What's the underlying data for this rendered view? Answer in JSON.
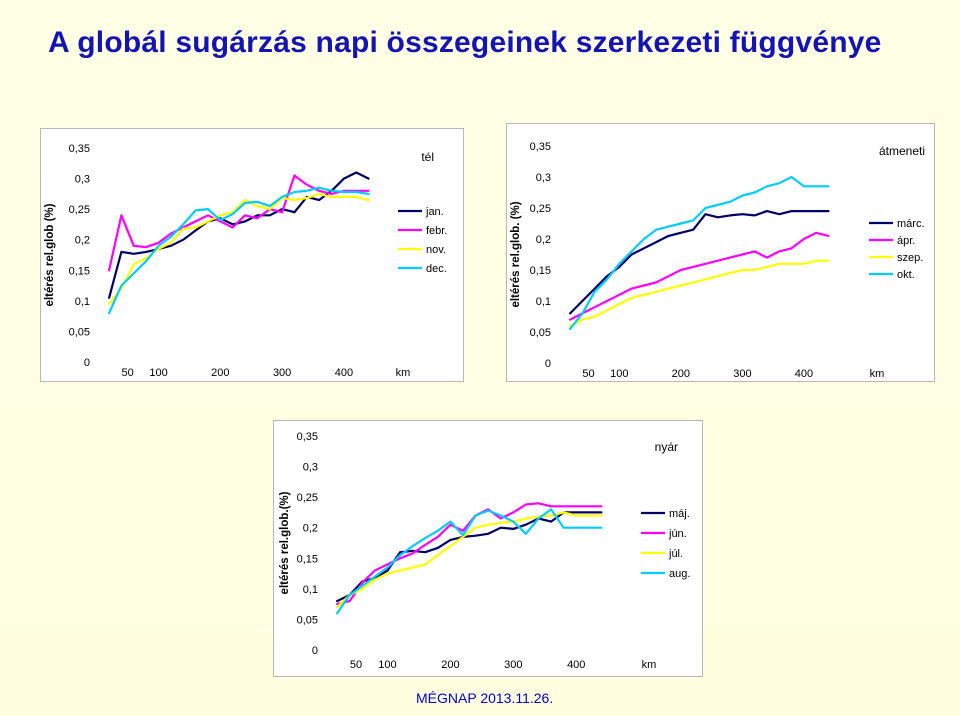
{
  "page": {
    "title": "A globál sugárzás napi összegeinek szerkezeti függvénye",
    "footer": "MÉGNAP 2013.11.26."
  },
  "chart_data": [
    {
      "type": "line",
      "title": "tél",
      "ylabel": "eltérés rel.glob (%)",
      "xunit": "km",
      "yticks": [
        "0",
        "0,05",
        "0,1",
        "0,15",
        "0,2",
        "0,25",
        "0,3",
        "0,35"
      ],
      "ytick_values": [
        0,
        0.05,
        0.1,
        0.15,
        0.2,
        0.25,
        0.3,
        0.35
      ],
      "xticks": [
        "50",
        "100",
        "200",
        "300",
        "400"
      ],
      "xtick_values": [
        50,
        100,
        200,
        300,
        400
      ],
      "ylim": [
        0,
        0.35
      ],
      "xlim": [
        15,
        460
      ],
      "legend_position": "right",
      "x": [
        20,
        40,
        60,
        80,
        100,
        120,
        140,
        160,
        180,
        200,
        220,
        240,
        260,
        280,
        300,
        320,
        340,
        360,
        380,
        400,
        420,
        440
      ],
      "series": [
        {
          "name": "jan.",
          "color": "#000066",
          "values": [
            0.105,
            0.18,
            0.177,
            0.18,
            0.185,
            0.19,
            0.2,
            0.215,
            0.23,
            0.235,
            0.225,
            0.23,
            0.24,
            0.24,
            0.25,
            0.245,
            0.27,
            0.265,
            0.28,
            0.3,
            0.31,
            0.3
          ]
        },
        {
          "name": "febr.",
          "color": "#ff00ff",
          "values": [
            0.15,
            0.24,
            0.19,
            0.188,
            0.195,
            0.21,
            0.22,
            0.23,
            0.24,
            0.23,
            0.22,
            0.24,
            0.235,
            0.25,
            0.245,
            0.305,
            0.29,
            0.28,
            0.275,
            0.28,
            0.28,
            0.28
          ]
        },
        {
          "name": "nov.",
          "color": "#ffff00",
          "values": [
            0.095,
            0.12,
            0.16,
            0.17,
            0.185,
            0.195,
            0.218,
            0.22,
            0.23,
            0.24,
            0.245,
            0.265,
            0.255,
            0.25,
            0.268,
            0.265,
            0.268,
            0.275,
            0.27,
            0.27,
            0.27,
            0.265
          ]
        },
        {
          "name": "dec.",
          "color": "#00ccff",
          "values": [
            0.08,
            0.125,
            0.145,
            0.165,
            0.19,
            0.205,
            0.225,
            0.248,
            0.25,
            0.232,
            0.242,
            0.26,
            0.262,
            0.255,
            0.27,
            0.278,
            0.28,
            0.285,
            0.28,
            0.278,
            0.278,
            0.275
          ]
        }
      ]
    },
    {
      "type": "line",
      "title": "átmeneti",
      "ylabel": "eltérés rel.glob. (%)",
      "xunit": "km",
      "yticks": [
        "0",
        "0,05",
        "0,1",
        "0,15",
        "0,2",
        "0,25",
        "0,3",
        "0,35"
      ],
      "ytick_values": [
        0,
        0.05,
        0.1,
        0.15,
        0.2,
        0.25,
        0.3,
        0.35
      ],
      "xticks": [
        "50",
        "100",
        "200",
        "300",
        "400"
      ],
      "xtick_values": [
        50,
        100,
        200,
        300,
        400
      ],
      "ylim": [
        0,
        0.35
      ],
      "xlim": [
        15,
        470
      ],
      "legend_position": "right",
      "x": [
        20,
        40,
        60,
        80,
        100,
        120,
        140,
        160,
        180,
        200,
        220,
        240,
        260,
        280,
        300,
        320,
        340,
        360,
        380,
        400,
        420,
        440
      ],
      "series": [
        {
          "name": "márc.",
          "color": "#000066",
          "values": [
            0.08,
            0.1,
            0.12,
            0.14,
            0.155,
            0.175,
            0.185,
            0.195,
            0.205,
            0.21,
            0.215,
            0.24,
            0.235,
            0.238,
            0.24,
            0.238,
            0.245,
            0.24,
            0.245,
            0.245,
            0.245,
            0.245
          ]
        },
        {
          "name": "ápr.",
          "color": "#ff00ff",
          "values": [
            0.07,
            0.08,
            0.09,
            0.1,
            0.11,
            0.12,
            0.125,
            0.13,
            0.14,
            0.15,
            0.155,
            0.16,
            0.165,
            0.17,
            0.175,
            0.18,
            0.17,
            0.18,
            0.185,
            0.2,
            0.21,
            0.205
          ]
        },
        {
          "name": "szep.",
          "color": "#ffff00",
          "values": [
            0.06,
            0.07,
            0.075,
            0.085,
            0.095,
            0.105,
            0.11,
            0.115,
            0.12,
            0.125,
            0.13,
            0.135,
            0.14,
            0.145,
            0.15,
            0.15,
            0.155,
            0.16,
            0.16,
            0.16,
            0.165,
            0.165
          ]
        },
        {
          "name": "okt.",
          "color": "#00ccff",
          "values": [
            0.055,
            0.08,
            0.115,
            0.135,
            0.16,
            0.18,
            0.2,
            0.215,
            0.22,
            0.225,
            0.23,
            0.25,
            0.255,
            0.26,
            0.27,
            0.275,
            0.285,
            0.29,
            0.3,
            0.285,
            0.285,
            0.285
          ]
        }
      ]
    },
    {
      "type": "line",
      "title": "nyár",
      "ylabel": "eltérés rel.glob.(%)",
      "xunit": "km",
      "yticks": [
        "0",
        "0,05",
        "0,1",
        "0,15",
        "0,2",
        "0,25",
        "0,3",
        "0,35"
      ],
      "ytick_values": [
        0,
        0.05,
        0.1,
        0.15,
        0.2,
        0.25,
        0.3,
        0.35
      ],
      "xticks": [
        "50",
        "100",
        "200",
        "300",
        "400"
      ],
      "xtick_values": [
        50,
        100,
        200,
        300,
        400
      ],
      "ylim": [
        0,
        0.35
      ],
      "xlim": [
        15,
        460
      ],
      "legend_position": "right",
      "x": [
        20,
        40,
        60,
        80,
        100,
        120,
        140,
        160,
        180,
        200,
        220,
        240,
        260,
        280,
        300,
        320,
        340,
        360,
        380,
        400,
        420,
        440
      ],
      "series": [
        {
          "name": "máj.",
          "color": "#000066",
          "values": [
            0.08,
            0.09,
            0.112,
            0.118,
            0.13,
            0.16,
            0.162,
            0.16,
            0.167,
            0.18,
            0.185,
            0.187,
            0.19,
            0.2,
            0.198,
            0.205,
            0.215,
            0.21,
            0.225,
            0.225,
            0.225,
            0.225
          ]
        },
        {
          "name": "jún.",
          "color": "#ff00ff",
          "values": [
            0.075,
            0.08,
            0.11,
            0.13,
            0.14,
            0.15,
            0.158,
            0.172,
            0.185,
            0.205,
            0.195,
            0.22,
            0.23,
            0.215,
            0.225,
            0.238,
            0.24,
            0.235,
            0.235,
            0.235,
            0.235,
            0.235
          ]
        },
        {
          "name": "júl.",
          "color": "#ffff00",
          "values": [
            0.07,
            0.09,
            0.1,
            0.115,
            0.125,
            0.13,
            0.135,
            0.14,
            0.155,
            0.17,
            0.185,
            0.2,
            0.205,
            0.208,
            0.21,
            0.215,
            0.218,
            0.22,
            0.225,
            0.22,
            0.22,
            0.22
          ]
        },
        {
          "name": "aug.",
          "color": "#00ccff",
          "values": [
            0.06,
            0.09,
            0.105,
            0.12,
            0.135,
            0.155,
            0.17,
            0.183,
            0.195,
            0.21,
            0.188,
            0.22,
            0.228,
            0.22,
            0.21,
            0.19,
            0.215,
            0.23,
            0.2,
            0.2,
            0.2,
            0.2
          ]
        }
      ]
    }
  ]
}
